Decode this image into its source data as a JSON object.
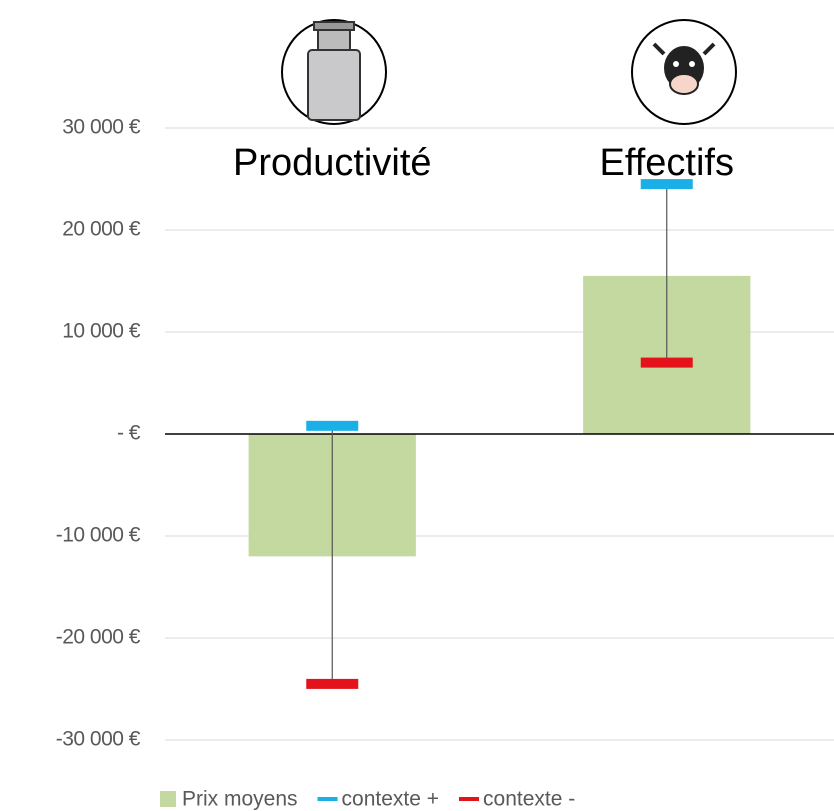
{
  "chart_data": {
    "type": "bar",
    "categories": [
      "Productivité",
      "Effectifs"
    ],
    "series": [
      {
        "name": "Prix moyens",
        "type": "bar",
        "color": "#c4d99f",
        "values": [
          -12000,
          15500
        ]
      },
      {
        "name": "contexte +",
        "type": "marker",
        "color": "#1aafe6",
        "values": [
          800,
          24500
        ]
      },
      {
        "name": "contexte -",
        "type": "marker",
        "color": "#e3121b",
        "values": [
          -24500,
          7000
        ]
      }
    ],
    "ylim": [
      -30000,
      30000
    ],
    "yticks": [
      {
        "value": 30000,
        "label": "30 000 €"
      },
      {
        "value": 20000,
        "label": "20 000 €"
      },
      {
        "value": 10000,
        "label": "10 000 €"
      },
      {
        "value": 0,
        "label": "-  €"
      },
      {
        "value": -10000,
        "label": "-10 000 €"
      },
      {
        "value": -20000,
        "label": "-20 000 €"
      },
      {
        "value": -30000,
        "label": "-30 000 €"
      }
    ],
    "grid": true,
    "legend": "bottom"
  }
}
